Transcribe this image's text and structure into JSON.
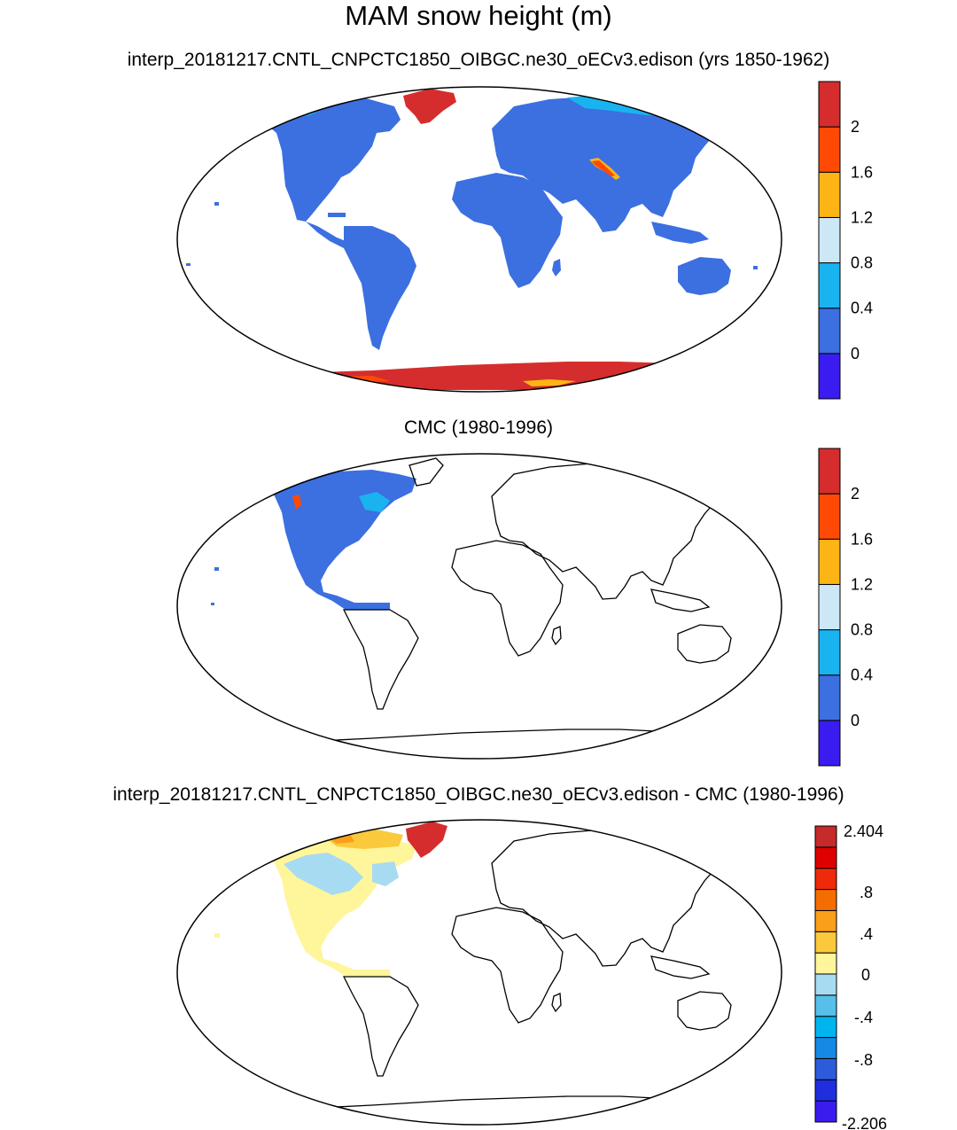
{
  "title": "MAM snow height (m)",
  "panels": [
    {
      "title": "interp_20181217.CNTL_CNPCTC1850_OIBGC.ne30_oECv3.edison (yrs 1850-1962)",
      "colorbar": {
        "colors": [
          "#3a1cf0",
          "#3c6fe0",
          "#19b4f0",
          "#cce7f6",
          "#fdb515",
          "#ff4a05",
          "#d52d2d"
        ],
        "labels": [
          "0",
          "0.4",
          "0.8",
          "1.2",
          "1.6",
          "2"
        ]
      }
    },
    {
      "title": "CMC (1980-1996)",
      "colorbar": {
        "colors": [
          "#3a1cf0",
          "#3c6fe0",
          "#19b4f0",
          "#cce7f6",
          "#fdb515",
          "#ff4a05",
          "#d52d2d"
        ],
        "labels": [
          "0",
          "0.4",
          "0.8",
          "1.2",
          "1.6",
          "2"
        ]
      }
    },
    {
      "title": "interp_20181217.CNTL_CNPCTC1850_OIBGC.ne30_oECv3.edison - CMC (1980-1996)",
      "colorbar": {
        "colors": [
          "#3a1cf0",
          "#1f2fdf",
          "#2d5bdb",
          "#1589e6",
          "#00b5ef",
          "#57bfe9",
          "#a7dbf1",
          "#fff59a",
          "#fbc93c",
          "#fa9f1a",
          "#f56d00",
          "#ee2a0b",
          "#df0000",
          "#c62a2a"
        ],
        "labels": [
          "2.404",
          ".8",
          ".4",
          "0",
          "-.4",
          "-.8",
          "-2.206"
        ]
      }
    }
  ],
  "colors": {
    "land_model": "#3c6fe0",
    "antarctica": "#d52d2d",
    "greenland": "#d52d2d",
    "diff_land": "#fff59a",
    "diff_north": "#fbc93c"
  }
}
